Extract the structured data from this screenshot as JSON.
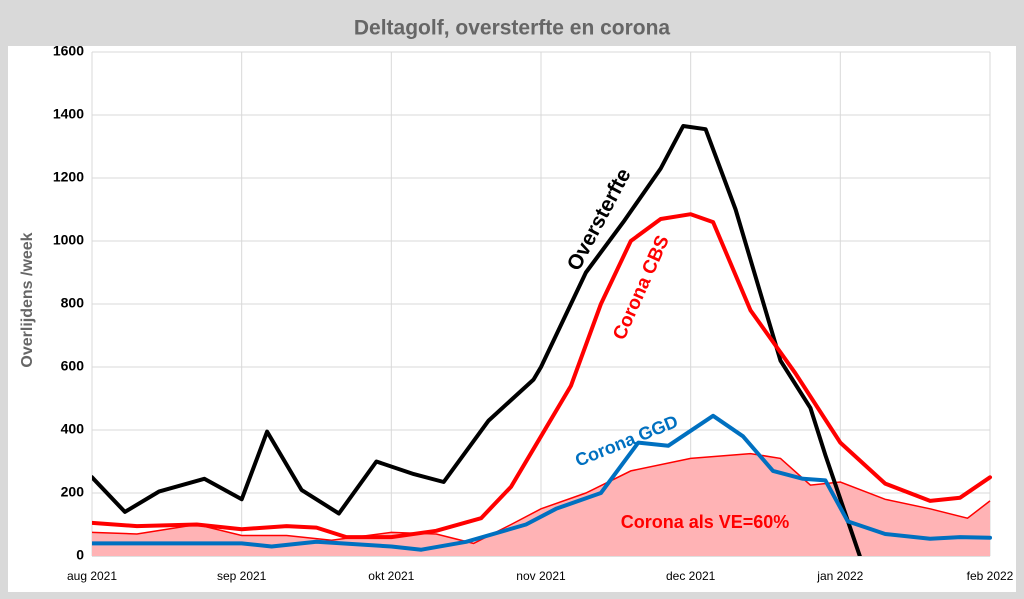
{
  "chart_data": {
    "type": "line",
    "title": "Deltagolf, oversterfte en corona",
    "y_label": "Overlijdens /week",
    "xlim": [
      0,
      6
    ],
    "xticks": [
      {
        "value": 0,
        "label": "aug 2021"
      },
      {
        "value": 1,
        "label": "sep 2021"
      },
      {
        "value": 2,
        "label": "okt 2021"
      },
      {
        "value": 3,
        "label": "nov 2021"
      },
      {
        "value": 4,
        "label": "dec 2021"
      },
      {
        "value": 5,
        "label": "jan 2022"
      },
      {
        "value": 6,
        "label": "feb 2022"
      }
    ],
    "ylim": [
      0,
      1600
    ],
    "yticks": [
      0,
      200,
      400,
      600,
      800,
      1000,
      1200,
      1400,
      1600
    ],
    "grid": true,
    "series": [
      {
        "name": "Corona als VE=60%",
        "kind": "area",
        "color": "#ff0000",
        "fill": "#ffb3b5",
        "x": [
          0,
          0.3,
          0.7,
          1.0,
          1.3,
          1.6,
          2.0,
          2.3,
          2.55,
          2.8,
          3.0,
          3.3,
          3.6,
          4.0,
          4.4,
          4.6,
          4.8,
          5.0,
          5.3,
          5.6,
          5.85,
          6.0
        ],
        "values": [
          75,
          70,
          100,
          65,
          65,
          50,
          75,
          70,
          40,
          100,
          150,
          200,
          270,
          310,
          325,
          310,
          225,
          235,
          180,
          150,
          120,
          175
        ]
      },
      {
        "name": "Oversterfte",
        "color": "#000000",
        "x": [
          0,
          0.22,
          0.45,
          0.75,
          1.0,
          1.17,
          1.4,
          1.65,
          1.9,
          2.15,
          2.35,
          2.65,
          2.95,
          3.0,
          3.3,
          3.55,
          3.8,
          3.95,
          4.1,
          4.3,
          4.6,
          4.8,
          4.9,
          5.13
        ],
        "values": [
          250,
          140,
          205,
          245,
          180,
          395,
          210,
          135,
          300,
          260,
          235,
          430,
          560,
          600,
          900,
          1060,
          1230,
          1365,
          1355,
          1100,
          620,
          470,
          320,
          0
        ]
      },
      {
        "name": "Corona CBS",
        "color": "#ff0000",
        "x": [
          0,
          0.3,
          0.7,
          1.0,
          1.3,
          1.5,
          1.7,
          2.0,
          2.3,
          2.6,
          2.8,
          3.0,
          3.2,
          3.4,
          3.6,
          3.8,
          4.0,
          4.15,
          4.4,
          4.7,
          5.0,
          5.3,
          5.6,
          5.8,
          6.0
        ],
        "values": [
          105,
          95,
          100,
          85,
          95,
          90,
          60,
          60,
          80,
          120,
          220,
          380,
          540,
          800,
          1000,
          1070,
          1085,
          1060,
          780,
          580,
          360,
          230,
          175,
          185,
          250
        ]
      },
      {
        "name": "Corona GGD",
        "color": "#0070c0",
        "x": [
          0,
          0.5,
          1.0,
          1.2,
          1.5,
          2.0,
          2.2,
          2.5,
          2.9,
          3.1,
          3.4,
          3.65,
          3.85,
          4.15,
          4.35,
          4.55,
          4.75,
          4.9,
          5.05,
          5.3,
          5.6,
          5.8,
          6.0
        ],
        "values": [
          40,
          40,
          40,
          30,
          45,
          30,
          20,
          45,
          100,
          150,
          200,
          360,
          350,
          445,
          380,
          270,
          245,
          240,
          110,
          70,
          55,
          60,
          58
        ]
      }
    ]
  }
}
